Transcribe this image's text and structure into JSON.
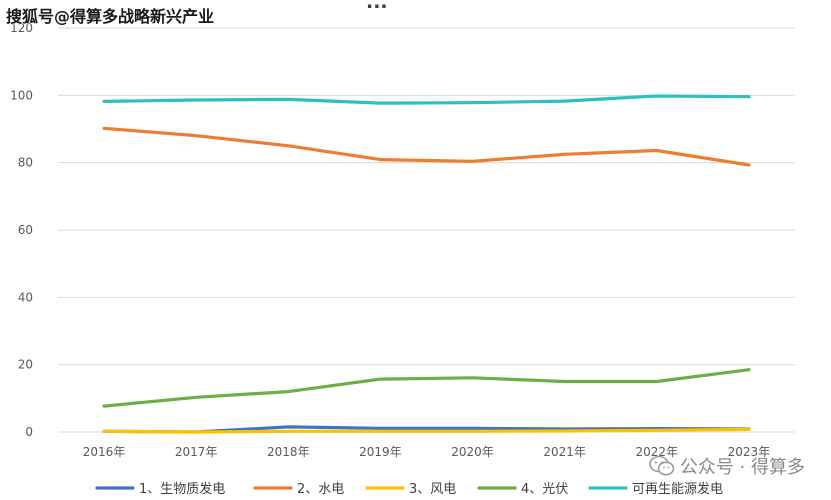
{
  "watermark": {
    "source_text": "搜狐号@得算多战略新兴产业",
    "wechat_text": "公众号 · 得算多"
  },
  "chart_data": {
    "type": "line",
    "title": "...",
    "xlabel": "",
    "ylabel": "",
    "categories": [
      "2016年",
      "2017年",
      "2018年",
      "2019年",
      "2020年",
      "2021年",
      "2022年",
      "2023年"
    ],
    "ylim": [
      0,
      120
    ],
    "yticks": [
      0,
      20,
      40,
      60,
      80,
      100,
      120
    ],
    "grid": true,
    "legend_position": "bottom",
    "series": [
      {
        "name": "1、生物质发电",
        "color": "#4472c4",
        "values": [
          0.2,
          0.0,
          1.5,
          1.1,
          1.1,
          0.9,
          1.0,
          0.9
        ]
      },
      {
        "name": "2、水电",
        "color": "#ed7d31",
        "values": [
          90.2,
          88.0,
          85.0,
          80.9,
          80.4,
          82.5,
          83.6,
          79.3
        ]
      },
      {
        "name": "3、风电",
        "color": "#ffc000",
        "values": [
          0.2,
          0.0,
          0.2,
          0.2,
          0.2,
          0.3,
          0.5,
          0.8
        ]
      },
      {
        "name": "4、光伏",
        "color": "#70ad47",
        "values": [
          7.7,
          10.3,
          12.0,
          15.7,
          16.1,
          15.0,
          15.0,
          18.5
        ]
      },
      {
        "name": "可再生能源发电",
        "color": "#2fbfbf",
        "values": [
          98.2,
          98.6,
          98.8,
          97.7,
          97.8,
          98.3,
          99.8,
          99.6
        ]
      }
    ]
  }
}
